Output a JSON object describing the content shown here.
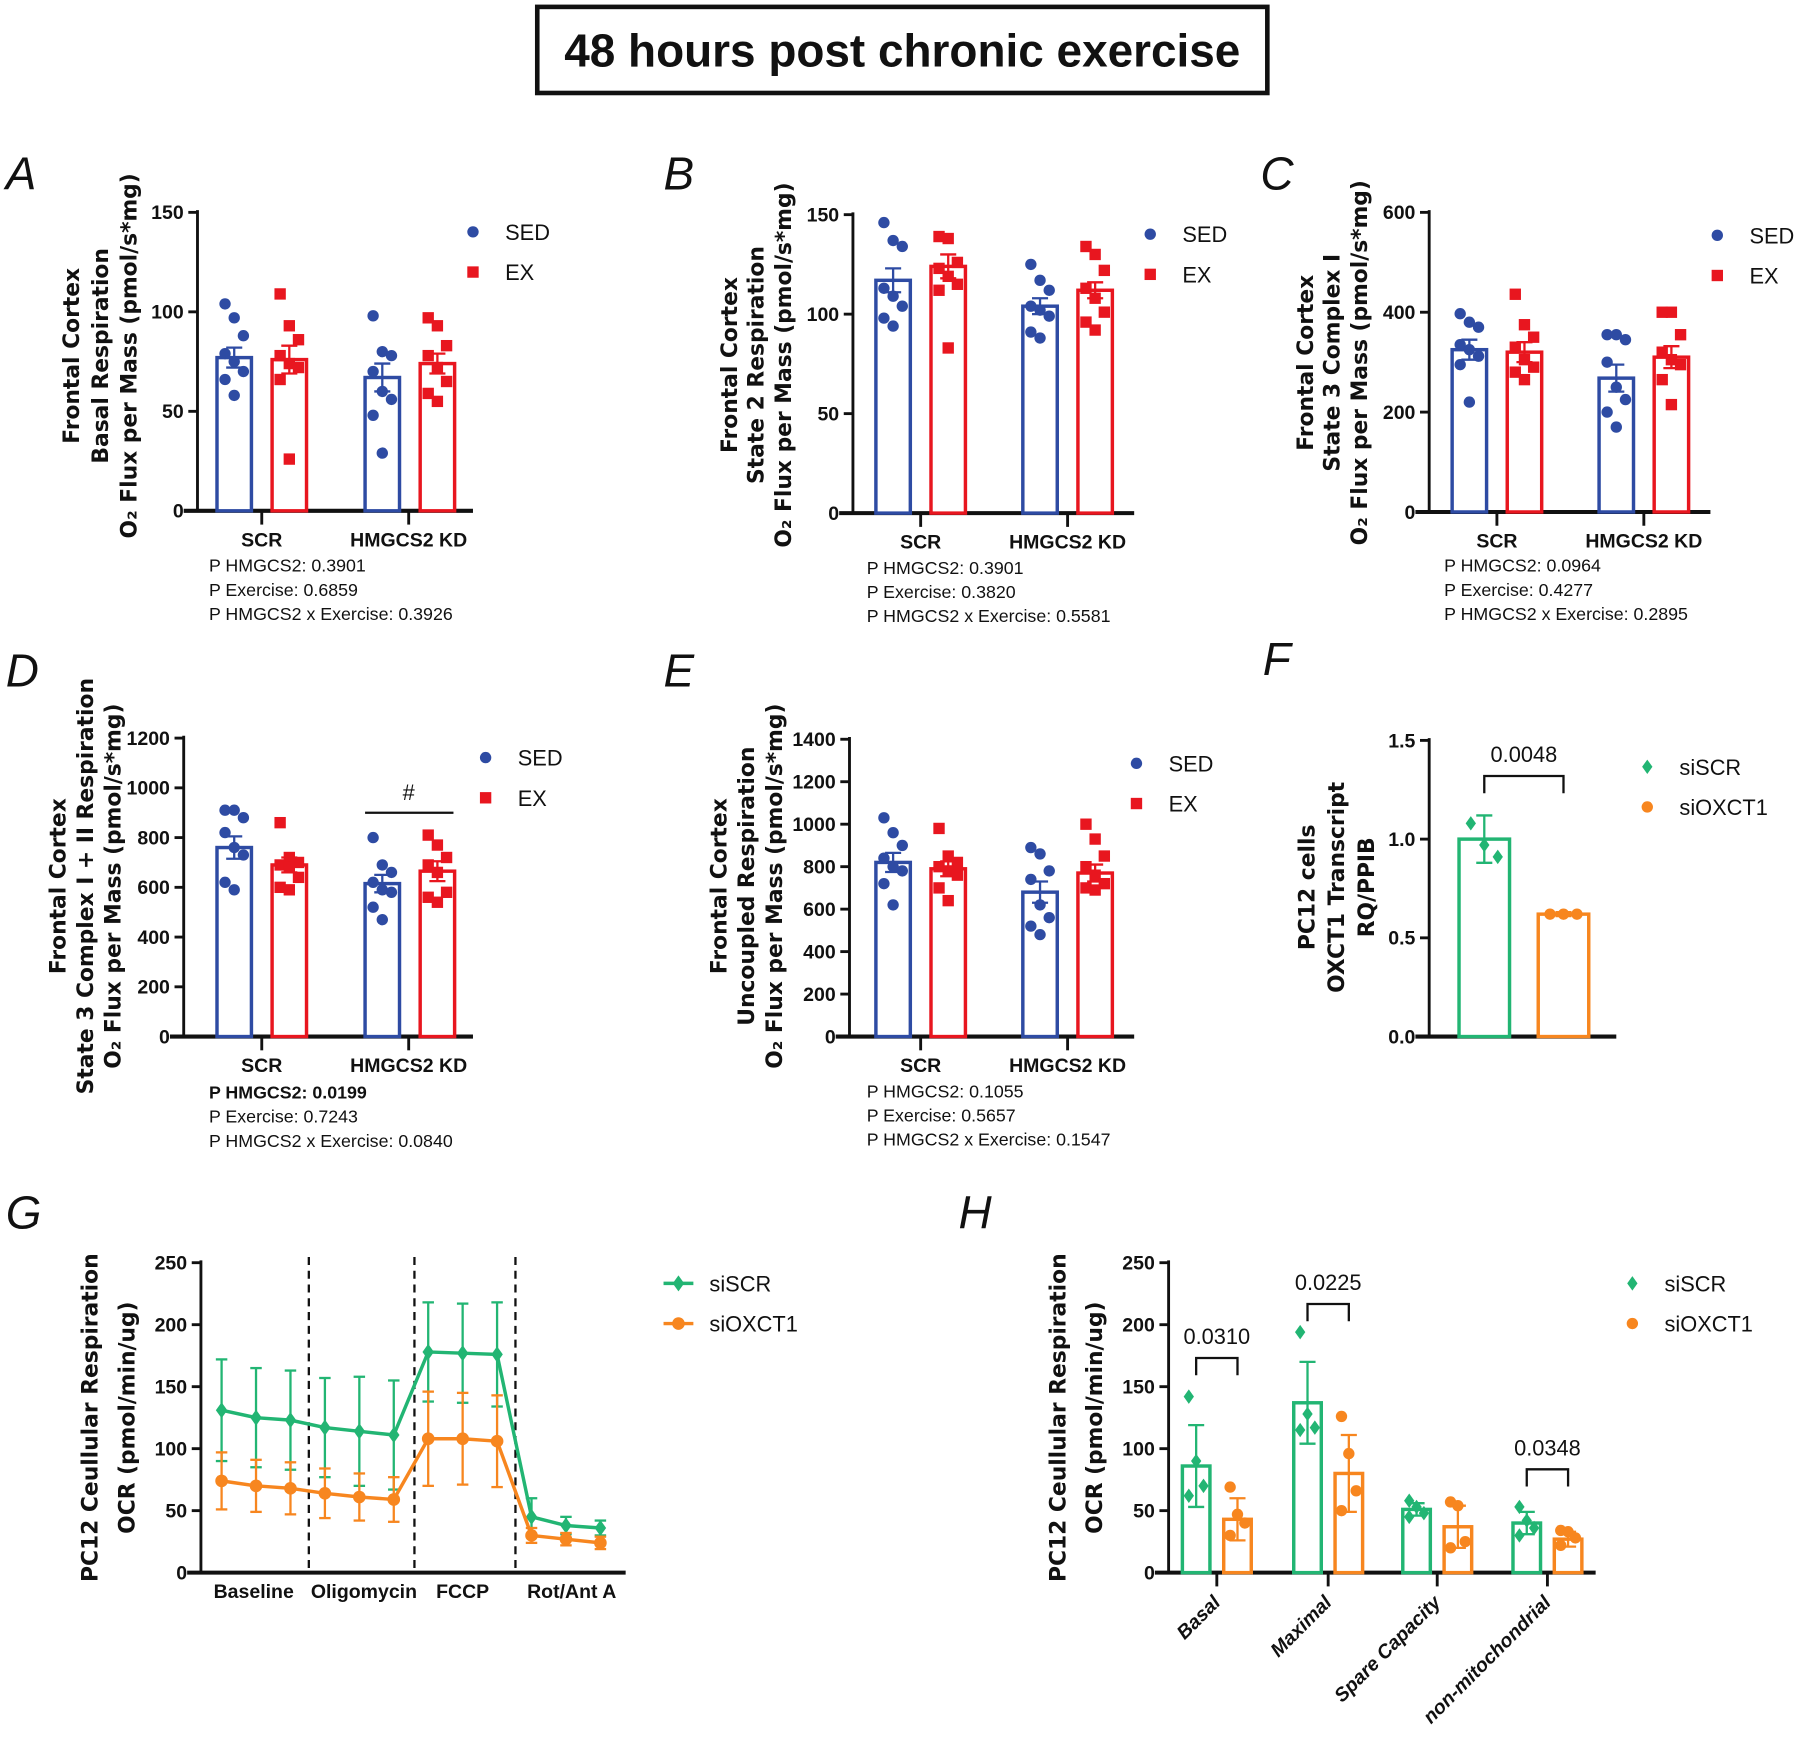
{
  "title": "48 hours post chronic exercise",
  "chart_data": [
    {
      "panel": "A",
      "type": "bar",
      "ylabel": [
        "Frontal Cortex",
        "Basal Respiration",
        "O₂ Flux per Mass (pmol/s*mg)"
      ],
      "ylim": [
        0,
        150
      ],
      "yticks": [
        "0",
        "50",
        "100",
        "150"
      ],
      "categories": [
        "SCR",
        "HMGCS2 KD"
      ],
      "series": [
        {
          "name": "SED",
          "color": "#2E4BA3",
          "marker": "circle",
          "groups": [
            {
              "mean": 77,
              "sem": 5,
              "points": [
                104,
                97,
                88,
                79,
                75,
                70,
                66,
                58
              ]
            },
            {
              "mean": 67,
              "sem": 7,
              "points": [
                98,
                80,
                78,
                70,
                60,
                56,
                48,
                29
              ]
            }
          ]
        },
        {
          "name": "EX",
          "color": "#E8161F",
          "marker": "square",
          "groups": [
            {
              "mean": 76,
              "sem": 7,
              "points": [
                109,
                93,
                86,
                78,
                74,
                72,
                66,
                26
              ]
            },
            {
              "mean": 74,
              "sem": 5,
              "points": [
                97,
                93,
                83,
                78,
                72,
                65,
                59,
                55
              ]
            }
          ]
        }
      ],
      "stats": [
        "P  HMGCS2: 0.3901",
        "P Exercise: 0.6859",
        "P HMGCS2 x Exercise: 0.3926"
      ],
      "stats_bold_first": false
    },
    {
      "panel": "B",
      "type": "bar",
      "ylabel": [
        "Frontal Cortex",
        "State 2 Respiration",
        "O₂ Flux per Mass (pmol/s*mg)"
      ],
      "ylim": [
        0,
        150
      ],
      "yticks": [
        "0",
        "50",
        "100",
        "150"
      ],
      "categories": [
        "SCR",
        "HMGCS2 KD"
      ],
      "series": [
        {
          "name": "SED",
          "color": "#2E4BA3",
          "marker": "circle",
          "groups": [
            {
              "mean": 117,
              "sem": 6,
              "points": [
                146,
                137,
                134,
                113,
                109,
                104,
                98,
                94
              ]
            },
            {
              "mean": 104,
              "sem": 4,
              "points": [
                125,
                117,
                112,
                104,
                102,
                99,
                91,
                88
              ]
            }
          ]
        },
        {
          "name": "EX",
          "color": "#E8161F",
          "marker": "square",
          "groups": [
            {
              "mean": 124,
              "sem": 6,
              "points": [
                139,
                138,
                126,
                123,
                119,
                115,
                112,
                83
              ]
            },
            {
              "mean": 112,
              "sem": 4,
              "points": [
                134,
                130,
                122,
                113,
                108,
                101,
                96,
                92
              ]
            }
          ]
        }
      ],
      "stats": [
        "P  HMGCS2: 0.3901",
        "P Exercise: 0.3820",
        "P HMGCS2 x Exercise: 0.5581"
      ],
      "stats_bold_first": false
    },
    {
      "panel": "C",
      "type": "bar",
      "ylabel": [
        "Frontal Cortex",
        "State 3 Complex I",
        "O₂ Flux per Mass (pmol/s*mg)"
      ],
      "ylim": [
        0,
        600
      ],
      "yticks": [
        "0",
        "200",
        "400",
        "600"
      ],
      "categories": [
        "SCR",
        "HMGCS2 KD"
      ],
      "series": [
        {
          "name": "SED",
          "color": "#2E4BA3",
          "marker": "circle",
          "groups": [
            {
              "mean": 325,
              "sem": 20,
              "points": [
                397,
                380,
                370,
                335,
                325,
                312,
                295,
                220
              ]
            },
            {
              "mean": 268,
              "sem": 27,
              "points": [
                355,
                355,
                345,
                300,
                250,
                225,
                200,
                170
              ]
            }
          ]
        },
        {
          "name": "EX",
          "color": "#E8161F",
          "marker": "square",
          "groups": [
            {
              "mean": 320,
              "sem": 20,
              "points": [
                436,
                375,
                350,
                330,
                305,
                290,
                280,
                265
              ]
            },
            {
              "mean": 310,
              "sem": 22,
              "points": [
                400,
                400,
                355,
                320,
                305,
                295,
                265,
                215
              ]
            }
          ]
        }
      ],
      "stats": [
        "P  HMGCS2: 0.0964",
        "P Exercise: 0.4277",
        "P HMGCS2 x Exercise: 0.2895"
      ],
      "stats_bold_first": false
    },
    {
      "panel": "D",
      "type": "bar",
      "ylabel": [
        "Frontal Cortex",
        "State 3 Complex I + II Respiration",
        "O₂ Flux per Mass (pmol/s*mg)"
      ],
      "ylim": [
        0,
        1200
      ],
      "yticks": [
        "0",
        "200",
        "400",
        "600",
        "800",
        "1000",
        "1200"
      ],
      "categories": [
        "SCR",
        "HMGCS2 KD"
      ],
      "series": [
        {
          "name": "SED",
          "color": "#2E4BA3",
          "marker": "circle",
          "groups": [
            {
              "mean": 760,
              "sem": 45,
              "points": [
                910,
                910,
                880,
                820,
                760,
                730,
                620,
                590
              ]
            },
            {
              "mean": 615,
              "sem": 35,
              "points": [
                800,
                690,
                660,
                620,
                590,
                580,
                520,
                470
              ]
            }
          ]
        },
        {
          "name": "EX",
          "color": "#E8161F",
          "marker": "square",
          "groups": [
            {
              "mean": 690,
              "sem": 30,
              "points": [
                860,
                720,
                700,
                690,
                680,
                640,
                600,
                590
              ]
            },
            {
              "mean": 665,
              "sem": 40,
              "points": [
                810,
                770,
                720,
                690,
                660,
                580,
                560,
                540
              ]
            }
          ]
        }
      ],
      "stats": [
        "P  HMGCS2: 0.0199",
        "P Exercise: 0.7243",
        "P HMGCS2 x Exercise: 0.0840"
      ],
      "stats_bold_first": true,
      "annotation": "#"
    },
    {
      "panel": "E",
      "type": "bar",
      "ylabel": [
        "Frontal Cortex",
        "Uncoupled Respiration",
        "O₂ Flux per Mass (pmol/s*mg)"
      ],
      "ylim": [
        0,
        1400
      ],
      "yticks": [
        "0",
        "200",
        "400",
        "600",
        "800",
        "1000",
        "1200",
        "1400"
      ],
      "categories": [
        "SCR",
        "HMGCS2 KD"
      ],
      "series": [
        {
          "name": "SED",
          "color": "#2E4BA3",
          "marker": "circle",
          "groups": [
            {
              "mean": 820,
              "sem": 45,
              "points": [
                1030,
                960,
                900,
                840,
                800,
                780,
                720,
                620
              ]
            },
            {
              "mean": 680,
              "sem": 50,
              "points": [
                890,
                860,
                780,
                740,
                620,
                560,
                520,
                480
              ]
            }
          ]
        },
        {
          "name": "EX",
          "color": "#E8161F",
          "marker": "square",
          "groups": [
            {
              "mean": 790,
              "sem": 35,
              "points": [
                980,
                850,
                820,
                800,
                780,
                760,
                700,
                640
              ]
            },
            {
              "mean": 770,
              "sem": 40,
              "points": [
                1000,
                930,
                850,
                800,
                760,
                720,
                700,
                690
              ]
            }
          ]
        }
      ],
      "stats": [
        "P  HMGCS2: 0.1055",
        "P Exercise: 0.5657",
        "P HMGCS2 x Exercise: 0.1547"
      ],
      "stats_bold_first": false
    },
    {
      "panel": "F",
      "type": "bar",
      "ylabel": [
        "PC12 cells",
        "OXCT1 Transcript",
        "RQ/PPIB"
      ],
      "ylim": [
        0,
        1.5
      ],
      "yticks": [
        "0.0",
        "0.5",
        "1.0",
        "1.5"
      ],
      "categories": [],
      "series": [
        {
          "name": "siSCR",
          "color": "#22B573",
          "marker": "diamond",
          "groups": [
            {
              "mean": 1.0,
              "sem": 0.12,
              "points": [
                1.08,
                0.97,
                0.91
              ]
            }
          ]
        },
        {
          "name": "siOXCT1",
          "color": "#F7861F",
          "marker": "circle",
          "groups": [
            {
              "mean": 0.62,
              "sem": 0.01,
              "points": [
                0.62,
                0.62,
                0.62
              ]
            }
          ]
        }
      ],
      "significance": [
        {
          "label": "0.0048"
        }
      ]
    },
    {
      "panel": "G",
      "type": "line",
      "ylabel": [
        "PC12 Ceullular Respiration",
        "OCR (pmol/min/ug)"
      ],
      "ylim": [
        0,
        250
      ],
      "yticks": [
        "0",
        "50",
        "100",
        "150",
        "200",
        "250"
      ],
      "phases": [
        "Baseline",
        "Oligomycin",
        "FCCP",
        "Rot/Ant A"
      ],
      "series": [
        {
          "name": "siSCR",
          "color": "#22B573",
          "marker": "diamond",
          "values": [
            131,
            125,
            123,
            117,
            114,
            111,
            178,
            177,
            176,
            45,
            38,
            36
          ],
          "errors": [
            41,
            40,
            40,
            40,
            44,
            44,
            40,
            40,
            42,
            15,
            7,
            6
          ]
        },
        {
          "name": "siOXCT1",
          "color": "#F7861F",
          "marker": "circle",
          "values": [
            74,
            70,
            68,
            64,
            61,
            59,
            108,
            108,
            106,
            30,
            27,
            24
          ],
          "errors": [
            23,
            21,
            21,
            20,
            19,
            18,
            38,
            37,
            37,
            6,
            5,
            5
          ]
        }
      ]
    },
    {
      "panel": "H",
      "type": "bar",
      "ylabel": [
        "PC12 Ceullular Respiration",
        "OCR (pmol/min/ug)"
      ],
      "ylim": [
        0,
        250
      ],
      "yticks": [
        "0",
        "50",
        "100",
        "150",
        "200",
        "250"
      ],
      "categories": [
        "Basal",
        "Maximal",
        "Spare Capacity",
        "non-mitochondrial"
      ],
      "series": [
        {
          "name": "siSCR",
          "color": "#22B573",
          "marker": "diamond",
          "groups": [
            {
              "mean": 86,
              "sem": 33,
              "points": [
                142,
                90,
                70,
                62
              ]
            },
            {
              "mean": 137,
              "sem": 33,
              "points": [
                194,
                128,
                117,
                115
              ]
            },
            {
              "mean": 51,
              "sem": 5,
              "points": [
                58,
                53,
                48,
                45
              ]
            },
            {
              "mean": 40,
              "sem": 9,
              "points": [
                53,
                42,
                36,
                30
              ]
            }
          ]
        },
        {
          "name": "siOXCT1",
          "color": "#F7861F",
          "marker": "circle",
          "groups": [
            {
              "mean": 43,
              "sem": 17,
              "points": [
                69,
                47,
                40,
                30
              ]
            },
            {
              "mean": 80,
              "sem": 31,
              "points": [
                126,
                96,
                66,
                50
              ]
            },
            {
              "mean": 37,
              "sem": 17,
              "points": [
                57,
                54,
                25,
                20
              ]
            },
            {
              "mean": 27,
              "sem": 6,
              "points": [
                34,
                33,
                28,
                22
              ]
            }
          ]
        }
      ],
      "significance": [
        {
          "category": 0,
          "label": "0.0310"
        },
        {
          "category": 1,
          "label": "0.0225"
        },
        {
          "category": 3,
          "label": "0.0348"
        }
      ]
    }
  ]
}
